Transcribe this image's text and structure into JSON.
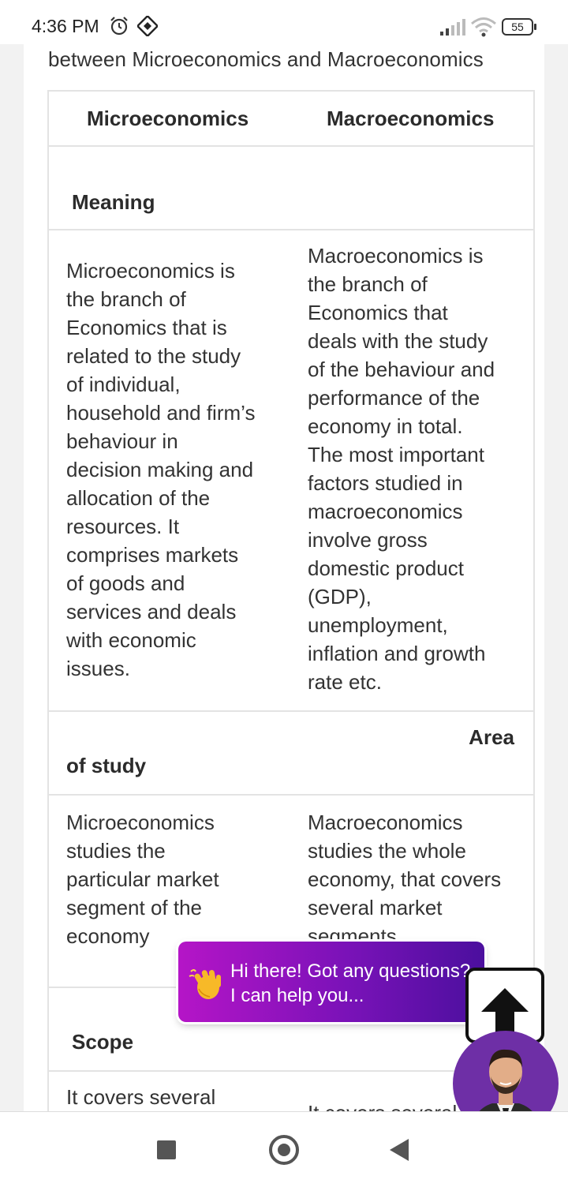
{
  "status_bar": {
    "time": "4:36 PM",
    "battery": "55",
    "icons": [
      "alarm-icon",
      "app-notification-icon",
      "signal-icon",
      "wifi-icon",
      "battery-icon"
    ]
  },
  "page": {
    "heading_fragment": "between Microeconomics and Macroeconomics"
  },
  "table": {
    "headers": [
      "Microeconomics",
      "Macroeconomics"
    ],
    "rows": [
      {
        "type": "label",
        "left": "Meaning",
        "right": ""
      },
      {
        "type": "content",
        "left": [
          "Microeconomics is",
          "the branch of",
          "Economics that is",
          "related to the study",
          "of individual,",
          "household and firm’s",
          "behaviour in",
          "decision making and",
          "allocation of the",
          "resources. It",
          "comprises markets",
          "of goods and",
          "services and deals",
          "with economic",
          "issues."
        ],
        "right": [
          "Macroeconomics is",
          "the branch of",
          "Economics that",
          "deals with the study",
          "of the behaviour and",
          "performance of the",
          "economy in total.",
          "The most important",
          "factors studied in",
          "macroeconomics",
          "involve gross",
          "domestic product",
          "(GDP),",
          "unemployment,",
          "inflation and growth",
          "rate etc."
        ]
      },
      {
        "type": "label",
        "left": "of study",
        "right": "Area"
      },
      {
        "type": "content",
        "left": [
          "Microeconomics",
          "studies the",
          "particular market",
          "segment of the",
          "economy"
        ],
        "right": [
          "Macroeconomics",
          "studies the whole",
          "economy, that covers",
          "several market",
          "segments"
        ]
      },
      {
        "type": "label",
        "left": "Scope",
        "right": ""
      },
      {
        "type": "content",
        "left": [
          "It covers several"
        ],
        "right": [
          "It covers several"
        ]
      }
    ]
  },
  "chat_widget": {
    "line1": "Hi there! Got any questions?",
    "line2": "I can help you...",
    "icon": "waving-hand-icon",
    "gradient": [
      "#b515c7",
      "#4b0f9e"
    ]
  },
  "scroll_top_icon": "arrow-up-icon",
  "nav_bar": {
    "icons": [
      "recent-apps-icon",
      "home-icon",
      "back-icon"
    ]
  }
}
